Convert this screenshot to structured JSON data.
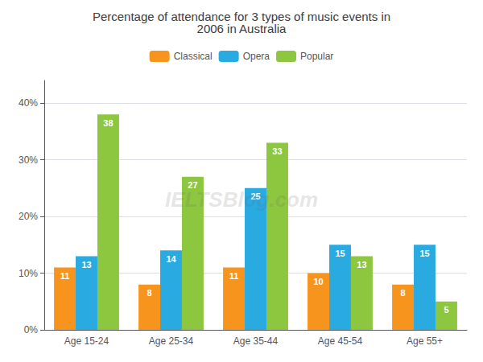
{
  "chart_data": {
    "type": "bar",
    "title": "Percentage of attendance for 3 types of music events in\n2006 in Australia",
    "categories": [
      "Age 15-24",
      "Age 25-34",
      "Age 35-44",
      "Age 45-54",
      "Age 55+"
    ],
    "series": [
      {
        "name": "Classical",
        "color": "#F7941D",
        "values": [
          11,
          8,
          11,
          10,
          8
        ]
      },
      {
        "name": "Opera",
        "color": "#29ABE2",
        "values": [
          13,
          14,
          25,
          15,
          15
        ]
      },
      {
        "name": "Popular",
        "color": "#8DC63F",
        "values": [
          38,
          27,
          33,
          13,
          5
        ]
      }
    ],
    "ylim": [
      0,
      44
    ],
    "yticks": [
      {
        "value": 0,
        "label": "0%"
      },
      {
        "value": 10,
        "label": "10%"
      },
      {
        "value": 20,
        "label": "20%"
      },
      {
        "value": 30,
        "label": "30%"
      },
      {
        "value": 40,
        "label": "40%"
      }
    ],
    "grid": true,
    "legend": "top",
    "data_labels": true,
    "annotations": [
      "IELTSBlog.com"
    ]
  }
}
